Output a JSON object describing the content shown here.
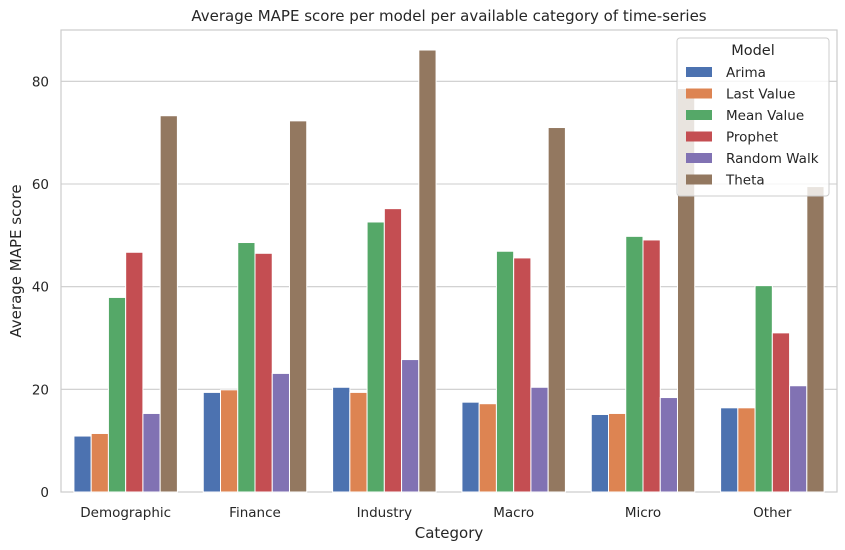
{
  "chart_data": {
    "type": "bar",
    "title": "Average MAPE score per model per available category of time-series",
    "xlabel": "Category",
    "ylabel": "Average MAPE score",
    "ylim": [
      0,
      90
    ],
    "yticks": [
      0,
      20,
      40,
      60,
      80
    ],
    "grid": "horizontal",
    "legend_title": "Model",
    "legend_position": "top-right",
    "categories": [
      "Demographic",
      "Finance",
      "Industry",
      "Macro",
      "Micro",
      "Other"
    ],
    "series": [
      {
        "name": "Arima",
        "color": "#4c72b0",
        "values": [
          10.9,
          19.4,
          20.4,
          17.5,
          15.1,
          16.4
        ]
      },
      {
        "name": "Last Value",
        "color": "#dd8452",
        "values": [
          11.4,
          19.9,
          19.4,
          17.2,
          15.3,
          16.4
        ]
      },
      {
        "name": "Mean Value",
        "color": "#55a868",
        "values": [
          37.9,
          48.6,
          52.6,
          46.9,
          49.8,
          40.2
        ]
      },
      {
        "name": "Prophet",
        "color": "#c44e52",
        "values": [
          46.7,
          46.5,
          55.2,
          45.6,
          49.1,
          31.0
        ]
      },
      {
        "name": "Random Walk",
        "color": "#8172b3",
        "values": [
          15.3,
          23.1,
          25.8,
          20.4,
          18.4,
          20.7
        ]
      },
      {
        "name": "Theta",
        "color": "#937860",
        "values": [
          73.3,
          72.3,
          86.1,
          71.0,
          78.6,
          59.5
        ]
      }
    ]
  }
}
